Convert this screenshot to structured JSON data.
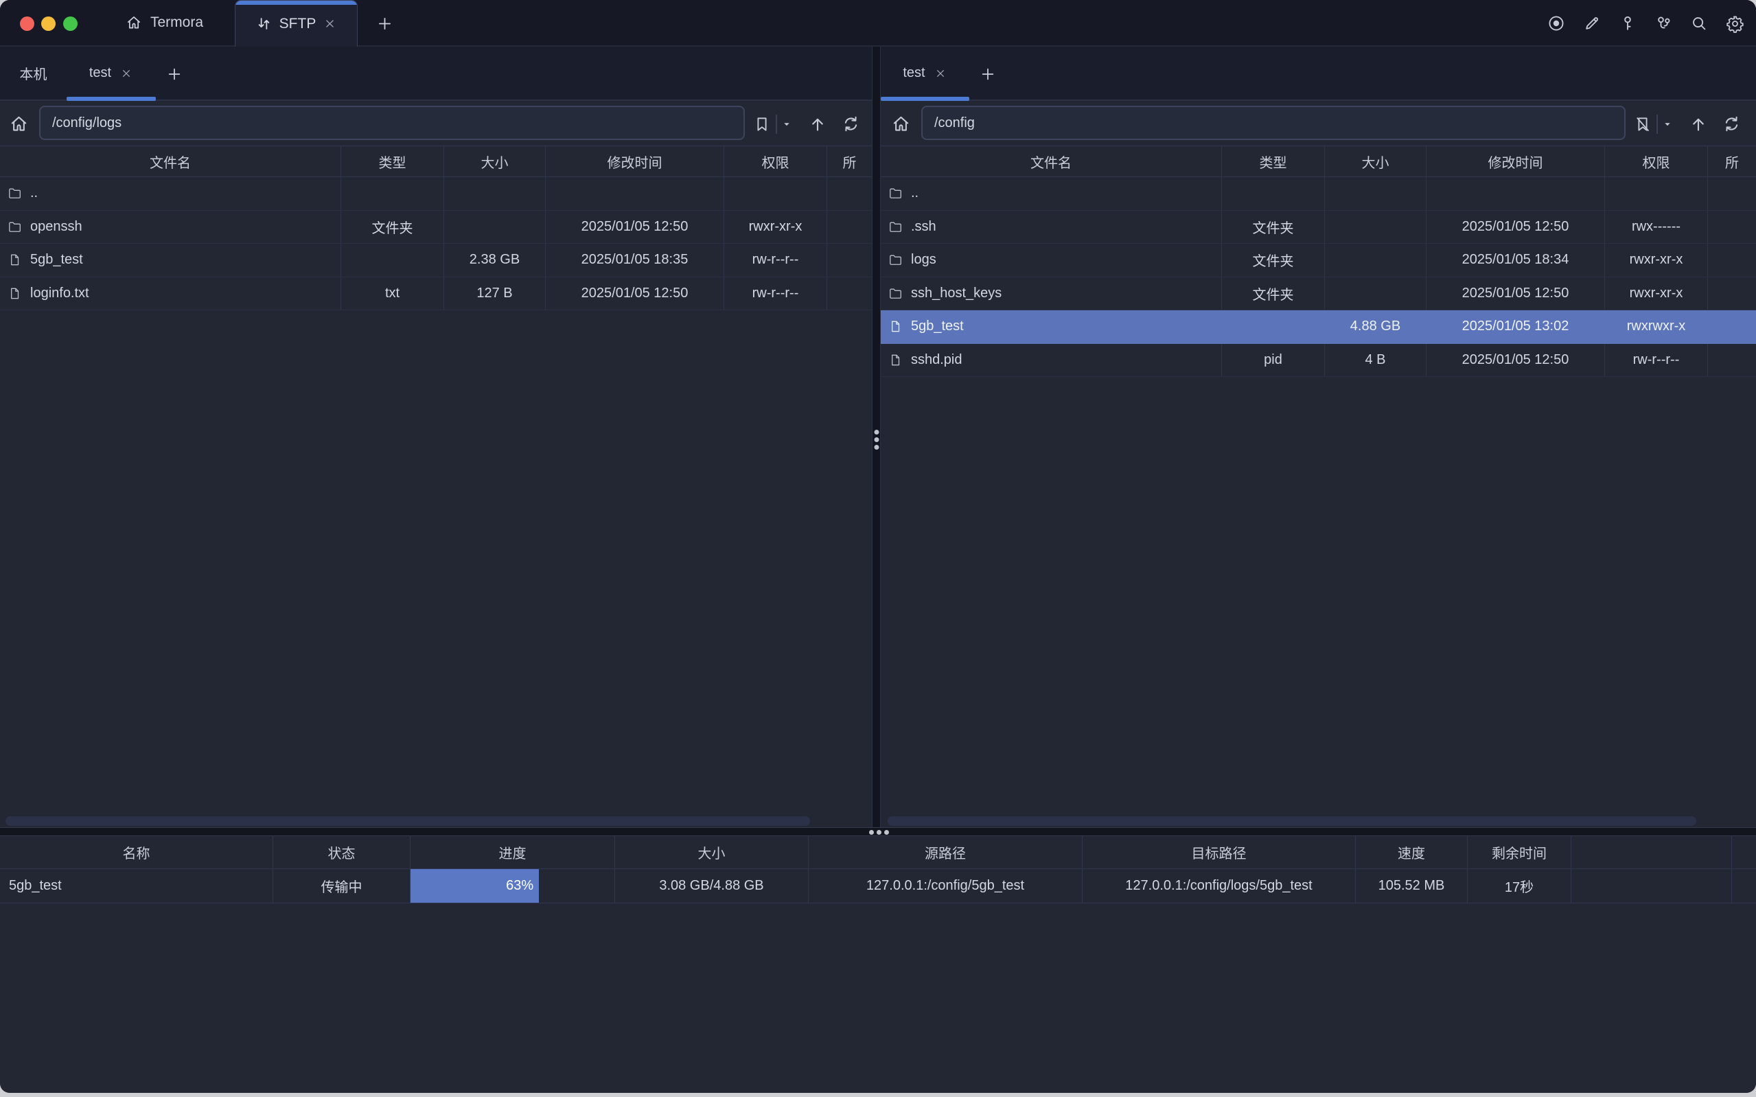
{
  "window": {
    "traffic_lights": {
      "close": "#f4645c",
      "minimize": "#f6bc3e",
      "zoom": "#43c64a"
    },
    "termora_tab": {
      "label": "Termora",
      "icon": "home"
    },
    "sftp_tab": {
      "label": "SFTP",
      "icon": "transfer-arrows",
      "closable": true,
      "active": true
    },
    "titlebar_icons": [
      "record",
      "edit-pencil",
      "key",
      "keychain",
      "search",
      "settings-gear"
    ]
  },
  "left_pane": {
    "tabs": [
      {
        "label": "本机",
        "active": false,
        "closable": false
      },
      {
        "label": "test",
        "active": true,
        "closable": true
      }
    ],
    "path": "/config/logs",
    "toolbar_icons": [
      "home",
      "bookmark",
      "caret-down",
      "arrow-up",
      "refresh"
    ],
    "table": {
      "columns": [
        "文件名",
        "类型",
        "大小",
        "修改时间",
        "权限",
        "所"
      ],
      "rows": [
        {
          "icon": "folder",
          "name": "..",
          "type": "",
          "size": "",
          "modified": "",
          "permissions": "",
          "selected": false
        },
        {
          "icon": "folder",
          "name": "openssh",
          "type": "文件夹",
          "size": "",
          "modified": "2025/01/05 12:50",
          "permissions": "rwxr-xr-x",
          "selected": false
        },
        {
          "icon": "file",
          "name": "5gb_test",
          "type": "",
          "size": "2.38 GB",
          "modified": "2025/01/05 18:35",
          "permissions": "rw-r--r--",
          "selected": false
        },
        {
          "icon": "file",
          "name": "loginfo.txt",
          "type": "txt",
          "size": "127 B",
          "modified": "2025/01/05 12:50",
          "permissions": "rw-r--r--",
          "selected": false
        }
      ]
    }
  },
  "right_pane": {
    "tabs": [
      {
        "label": "test",
        "active": true,
        "closable": true
      }
    ],
    "path": "/config",
    "toolbar_icons": [
      "home",
      "bookmark-slash",
      "caret-down",
      "arrow-up",
      "refresh"
    ],
    "table": {
      "columns": [
        "文件名",
        "类型",
        "大小",
        "修改时间",
        "权限",
        "所"
      ],
      "rows": [
        {
          "icon": "folder",
          "name": "..",
          "type": "",
          "size": "",
          "modified": "",
          "permissions": "",
          "selected": false
        },
        {
          "icon": "folder",
          "name": ".ssh",
          "type": "文件夹",
          "size": "",
          "modified": "2025/01/05 12:50",
          "permissions": "rwx------",
          "selected": false
        },
        {
          "icon": "folder",
          "name": "logs",
          "type": "文件夹",
          "size": "",
          "modified": "2025/01/05 18:34",
          "permissions": "rwxr-xr-x",
          "selected": false
        },
        {
          "icon": "folder",
          "name": "ssh_host_keys",
          "type": "文件夹",
          "size": "",
          "modified": "2025/01/05 12:50",
          "permissions": "rwxr-xr-x",
          "selected": false
        },
        {
          "icon": "file",
          "name": "5gb_test",
          "type": "",
          "size": "4.88 GB",
          "modified": "2025/01/05 13:02",
          "permissions": "rwxrwxr-x",
          "selected": true
        },
        {
          "icon": "file",
          "name": "sshd.pid",
          "type": "pid",
          "size": "4 B",
          "modified": "2025/01/05 12:50",
          "permissions": "rw-r--r--",
          "selected": false
        }
      ]
    }
  },
  "transfers": {
    "columns": [
      "名称",
      "状态",
      "进度",
      "大小",
      "源路径",
      "目标路径",
      "速度",
      "剩余时间"
    ],
    "rows": [
      {
        "name": "5gb_test",
        "status": "传输中",
        "progress": "63%",
        "progress_pct": 63,
        "size": "3.08 GB/4.88 GB",
        "source": "127.0.0.1:/config/5gb_test",
        "target": "127.0.0.1:/config/logs/5gb_test",
        "speed": "105.52 MB",
        "remaining": "17秒"
      }
    ]
  },
  "colors": {
    "titlebar_bg": "#161925",
    "content_bg": "#232733",
    "tabrow_bg": "#1a1d2b",
    "accent_blue": "#4d7ad2",
    "selection_blue": "#5b74ba",
    "progress_blue": "#5b78c5",
    "grid_line": "#303650",
    "text": "#d3d7e1"
  }
}
